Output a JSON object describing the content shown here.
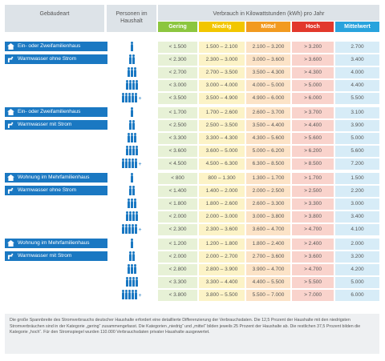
{
  "header": {
    "building_type": "Gebäudeart",
    "persons": "Personen im Haushalt",
    "consumption": "Verbrauch in Kilowattstunden (kWh) pro Jahr",
    "categories": [
      "Gering",
      "Niedrig",
      "Mittel",
      "Hoch",
      "Mittelwert"
    ]
  },
  "colors": {
    "label_blue": "#1a78c2",
    "gering": "#8cc63f",
    "niedrig": "#f2c600",
    "mittel": "#f29a20",
    "hoch": "#e2382c",
    "mittelwert": "#29a3dd",
    "gering_light": "#e7f1d6",
    "niedrig_light": "#fcf3c7",
    "mittel_light": "#fce3c7",
    "hoch_light": "#f9d3cc",
    "mittelwert_light": "#d7ecf7"
  },
  "sections": [
    {
      "label1": "Ein- oder Zweifamilienhaus",
      "label2": "Warmwasser ohne Strom",
      "rows": [
        {
          "persons": 1,
          "gering": "< 1.500",
          "niedrig": "1.500 – 2.100",
          "mittel": "2.100 – 3.200",
          "hoch": "> 3.200",
          "mittelwert": "2.700"
        },
        {
          "persons": 2,
          "gering": "< 2.300",
          "niedrig": "2.300 – 3.000",
          "mittel": "3.000 – 3.600",
          "hoch": "> 3.600",
          "mittelwert": "3.400"
        },
        {
          "persons": 3,
          "gering": "< 2.700",
          "niedrig": "2.700 – 3.500",
          "mittel": "3.500 – 4.300",
          "hoch": "> 4.300",
          "mittelwert": "4.000"
        },
        {
          "persons": 4,
          "gering": "< 3.000",
          "niedrig": "3.000 – 4.000",
          "mittel": "4.000 – 5.000",
          "hoch": "> 5.000",
          "mittelwert": "4.400"
        },
        {
          "persons": 5,
          "gering": "< 3.500",
          "niedrig": "3.500 – 4.900",
          "mittel": "4.900 – 6.000",
          "hoch": "> 6.000",
          "mittelwert": "5.500"
        }
      ]
    },
    {
      "label1": "Ein- oder Zweifamilienhaus",
      "label2": "Warmwasser mit Strom",
      "rows": [
        {
          "persons": 1,
          "gering": "< 1.700",
          "niedrig": "1.700 – 2.600",
          "mittel": "2.600 – 3.700",
          "hoch": "> 3.700",
          "mittelwert": "3.100"
        },
        {
          "persons": 2,
          "gering": "< 2.500",
          "niedrig": "2.500 – 3.500",
          "mittel": "3.500 – 4.400",
          "hoch": "> 4.400",
          "mittelwert": "3.900"
        },
        {
          "persons": 3,
          "gering": "< 3.300",
          "niedrig": "3.300 – 4.300",
          "mittel": "4.300 – 5.600",
          "hoch": "> 5.600",
          "mittelwert": "5.000"
        },
        {
          "persons": 4,
          "gering": "< 3.600",
          "niedrig": "3.600 – 5.000",
          "mittel": "5.000 – 6.200",
          "hoch": "> 6.200",
          "mittelwert": "5.600"
        },
        {
          "persons": 5,
          "gering": "< 4.500",
          "niedrig": "4.500 – 6.300",
          "mittel": "6.300 – 8.500",
          "hoch": "> 8.500",
          "mittelwert": "7.200"
        }
      ]
    },
    {
      "label1": "Wohnung im Mehrfamilienhaus",
      "label2": "Warmwasser ohne Strom",
      "rows": [
        {
          "persons": 1,
          "gering": "< 800",
          "niedrig": "800 – 1.300",
          "mittel": "1.300 – 1.700",
          "hoch": "> 1.700",
          "mittelwert": "1.500"
        },
        {
          "persons": 2,
          "gering": "< 1.400",
          "niedrig": "1.400 – 2.000",
          "mittel": "2.000 – 2.500",
          "hoch": "> 2.500",
          "mittelwert": "2.200"
        },
        {
          "persons": 3,
          "gering": "< 1.800",
          "niedrig": "1.800 – 2.600",
          "mittel": "2.600 – 3.300",
          "hoch": "> 3.300",
          "mittelwert": "3.000"
        },
        {
          "persons": 4,
          "gering": "< 2.000",
          "niedrig": "2.000 – 3.000",
          "mittel": "3.000 – 3.800",
          "hoch": "> 3.800",
          "mittelwert": "3.400"
        },
        {
          "persons": 5,
          "gering": "< 2.300",
          "niedrig": "2.300 – 3.600",
          "mittel": "3.600 – 4.700",
          "hoch": "> 4.700",
          "mittelwert": "4.100"
        }
      ]
    },
    {
      "label1": "Wohnung im Mehrfamilienhaus",
      "label2": "Warmwasser mit Strom",
      "rows": [
        {
          "persons": 1,
          "gering": "< 1.200",
          "niedrig": "1.200 – 1.800",
          "mittel": "1.800 – 2.400",
          "hoch": "> 2.400",
          "mittelwert": "2.000"
        },
        {
          "persons": 2,
          "gering": "< 2.000",
          "niedrig": "2.000 – 2.700",
          "mittel": "2.700 – 3.600",
          "hoch": "> 3.600",
          "mittelwert": "3.200"
        },
        {
          "persons": 3,
          "gering": "< 2.800",
          "niedrig": "2.800 – 3.900",
          "mittel": "3.900 – 4.700",
          "hoch": "> 4.700",
          "mittelwert": "4.200"
        },
        {
          "persons": 4,
          "gering": "< 3.300",
          "niedrig": "3.300 – 4.400",
          "mittel": "4.400 – 5.500",
          "hoch": "> 5.500",
          "mittelwert": "5.000"
        },
        {
          "persons": 5,
          "gering": "< 3.800",
          "niedrig": "3.800 – 5.500",
          "mittel": "5.500 – 7.000",
          "hoch": "> 7.000",
          "mittelwert": "6.000"
        }
      ]
    }
  ],
  "note": "Die große Spannbreite des Stromverbrauchs deutscher Haushalte erfordert eine detaillierte Differenzierung der Verbrauchsdaten. Die 12,5 Prozent der Haushalte mit den niedrigsten Stromverbräuchen sind in der Kategorie „gering“ zusammengefasst. Die Kategorien „niedrig“ und „mittel“ bilden jeweils 25 Prozent der Haushalte ab. Die restlichen 37,5 Prozent bilden die Kategorie „hoch“. Für den Stromspiegel wurden 110.000 Verbrauchsdaten privater Haushalte ausgewertet."
}
